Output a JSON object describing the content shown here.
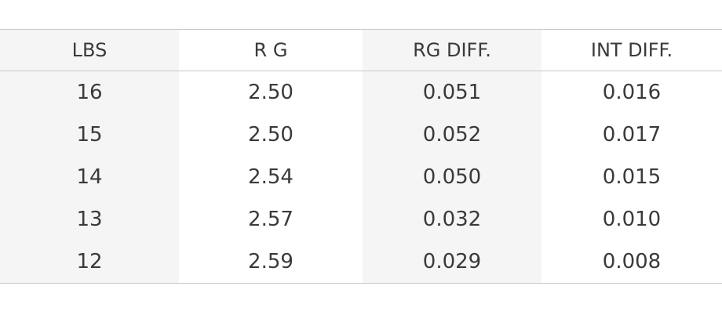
{
  "table": {
    "header": [
      "LBS",
      "R G",
      "RG DIFF.",
      "INT DIFF."
    ],
    "rows": [
      [
        "16",
        "2.50",
        "0.051",
        "0.016"
      ],
      [
        "15",
        "2.50",
        "0.052",
        "0.017"
      ],
      [
        "14",
        "2.54",
        "0.050",
        "0.015"
      ],
      [
        "13",
        "2.57",
        "0.032",
        "0.010"
      ],
      [
        "12",
        "2.59",
        "0.029",
        "0.008"
      ]
    ]
  }
}
